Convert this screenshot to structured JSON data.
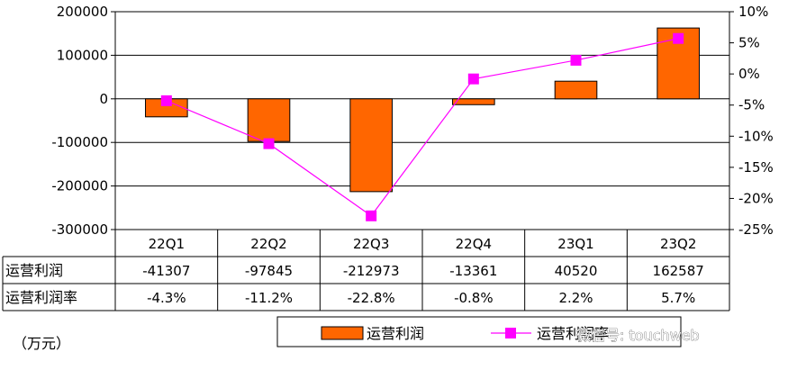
{
  "chart_data": {
    "type": "bar+line",
    "categories": [
      "22Q1",
      "22Q2",
      "22Q3",
      "22Q4",
      "23Q1",
      "23Q2"
    ],
    "series": [
      {
        "name": "运营利润",
        "kind": "bar",
        "axis": "left",
        "color": "#FF6600",
        "values": [
          -41307,
          -97845,
          -212973,
          -13361,
          40520,
          162587
        ],
        "labels": [
          "-41307",
          "-97845",
          "-212973",
          "-13361",
          "40520",
          "162587"
        ]
      },
      {
        "name": "运营利润率",
        "kind": "line",
        "axis": "right",
        "color": "#FF00FF",
        "values": [
          -4.3,
          -11.2,
          -22.8,
          -0.8,
          2.2,
          5.7
        ],
        "labels": [
          "-4.3%",
          "-11.2%",
          "-22.8%",
          "-0.8%",
          "2.2%",
          "5.7%"
        ]
      }
    ],
    "y_left": {
      "ylim": [
        -300000,
        200000
      ],
      "ticks": [
        200000,
        100000,
        0,
        -100000,
        -200000,
        -300000
      ],
      "tick_labels": [
        "200000",
        "100000",
        "0",
        "-100000",
        "-200000",
        "-300000"
      ]
    },
    "y_right": {
      "ylim": [
        -25,
        10
      ],
      "ticks": [
        10,
        5,
        0,
        -5,
        -10,
        -15,
        -20,
        -25
      ],
      "tick_labels": [
        "10%",
        "5%",
        "0%",
        "-5%",
        "-10%",
        "-15%",
        "-20%",
        "-25%"
      ]
    },
    "grid": true,
    "data_table": true,
    "legend_position": "bottom",
    "unit_note": "（万元）",
    "title": ""
  },
  "watermark": "微信号: touchweb"
}
